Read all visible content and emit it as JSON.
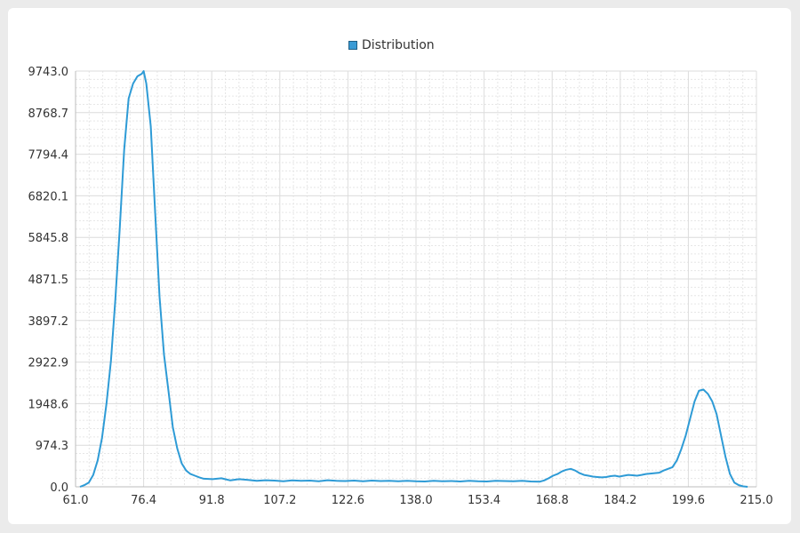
{
  "chart_data": {
    "type": "line",
    "title": "",
    "xlabel": "",
    "ylabel": "",
    "xlim": [
      61.0,
      215.0
    ],
    "ylim": [
      0.0,
      9743.0
    ],
    "x_ticks": [
      "61.0",
      "76.4",
      "91.8",
      "107.2",
      "122.6",
      "138.0",
      "153.4",
      "168.8",
      "184.2",
      "199.6",
      "215.0"
    ],
    "y_ticks": [
      "0.0",
      "974.3",
      "1948.6",
      "2922.9",
      "3897.2",
      "4871.5",
      "5845.8",
      "6820.1",
      "7794.4",
      "8768.7",
      "9743.0"
    ],
    "grid": true,
    "legend": "top-center",
    "series": [
      {
        "name": "Distribution",
        "color": "#2e9bd6",
        "x": [
          62,
          63,
          64,
          65,
          66,
          67,
          68,
          69,
          70,
          71,
          72,
          73,
          74,
          75,
          76,
          76.4,
          77,
          78,
          79,
          80,
          81,
          82,
          83,
          84,
          85,
          86,
          87,
          88,
          89,
          90,
          92,
          94,
          96,
          98,
          100,
          102,
          104,
          106,
          108,
          110,
          112,
          114,
          116,
          118,
          120,
          122,
          124,
          126,
          128,
          130,
          132,
          134,
          136,
          138,
          140,
          142,
          144,
          146,
          148,
          150,
          152,
          154,
          156,
          158,
          160,
          162,
          164,
          166,
          167,
          168,
          169,
          170,
          171,
          172,
          173,
          174,
          175,
          176,
          177,
          178,
          179,
          180,
          181,
          182,
          183,
          184,
          185,
          186,
          187,
          188,
          189,
          190,
          191,
          192,
          193,
          194,
          195,
          196,
          197,
          198,
          199,
          200,
          201,
          202,
          203,
          204,
          205,
          206,
          207,
          208,
          209,
          210,
          211,
          212,
          213
        ],
        "y": [
          0,
          40,
          100,
          280,
          620,
          1150,
          1950,
          2950,
          4400,
          6050,
          7900,
          9100,
          9450,
          9620,
          9680,
          9743,
          9450,
          8450,
          6450,
          4450,
          3100,
          2250,
          1400,
          900,
          550,
          380,
          300,
          260,
          220,
          190,
          180,
          200,
          150,
          180,
          160,
          140,
          155,
          145,
          130,
          150,
          140,
          145,
          130,
          155,
          140,
          135,
          145,
          130,
          145,
          135,
          140,
          130,
          140,
          130,
          125,
          140,
          130,
          135,
          125,
          140,
          130,
          125,
          140,
          135,
          130,
          140,
          125,
          120,
          150,
          200,
          260,
          300,
          360,
          400,
          420,
          380,
          320,
          280,
          260,
          240,
          230,
          220,
          230,
          250,
          260,
          240,
          260,
          280,
          270,
          260,
          280,
          300,
          310,
          320,
          330,
          380,
          420,
          460,
          620,
          880,
          1200,
          1600,
          2000,
          2250,
          2280,
          2180,
          2000,
          1700,
          1200,
          700,
          300,
          100,
          40,
          10,
          0
        ]
      }
    ]
  }
}
